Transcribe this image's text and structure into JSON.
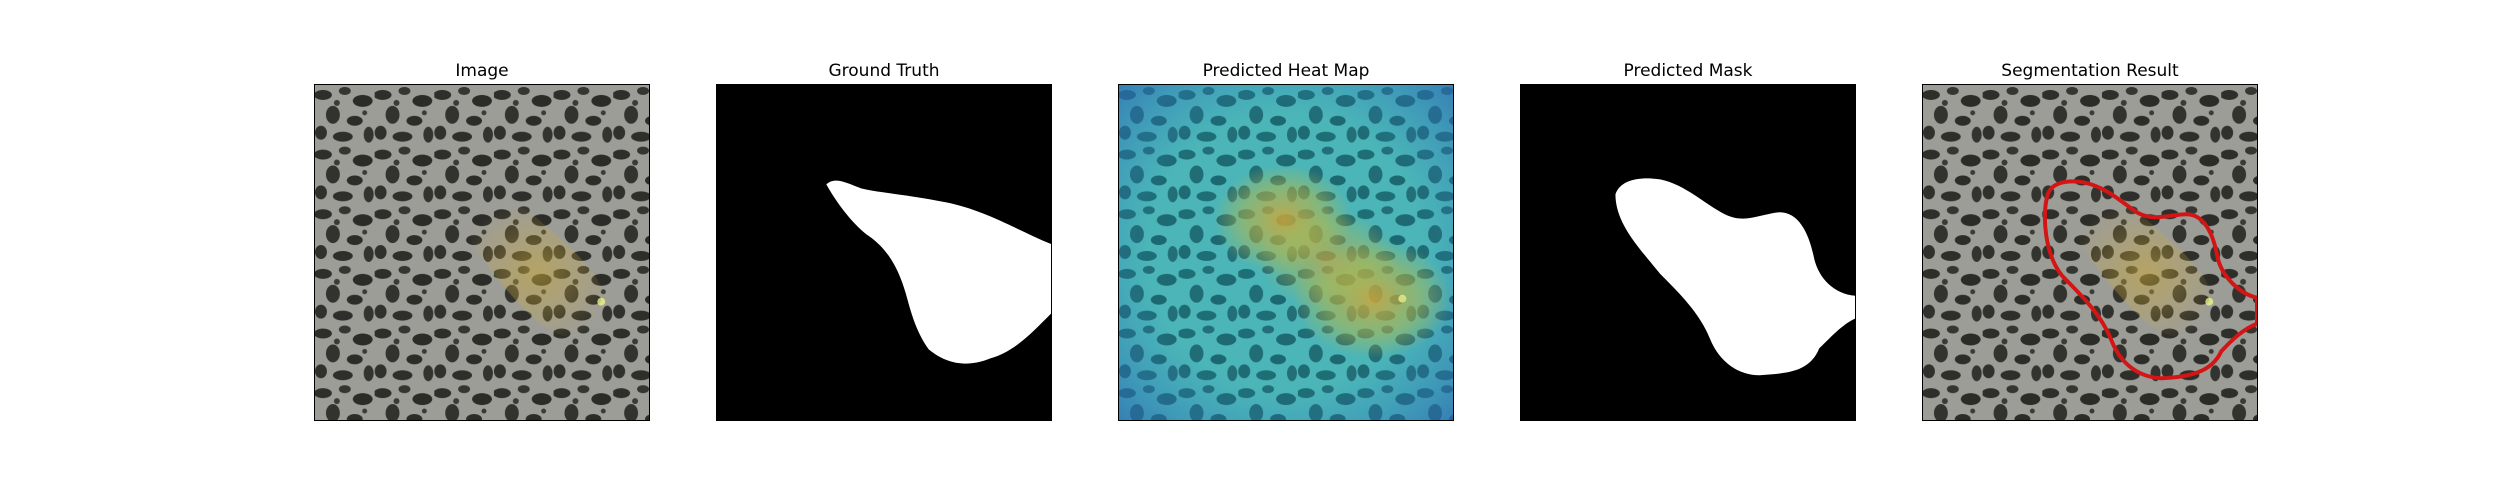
{
  "panels": [
    {
      "title": "Image"
    },
    {
      "title": "Ground Truth"
    },
    {
      "title": "Predicted Heat Map"
    },
    {
      "title": "Predicted Mask"
    },
    {
      "title": "Segmentation Result"
    }
  ],
  "colors": {
    "speckle_dark": "#2e2e2b",
    "speckle_light": "#a3a39e",
    "defect_tint": "#b59a3a",
    "mask_fg": "#ffffff",
    "mask_bg": "#000000",
    "heat_cool": "#2f7fbf",
    "heat_mid": "#3ec3c3",
    "heat_warm": "#c8b43a",
    "contour": "#d41515"
  }
}
